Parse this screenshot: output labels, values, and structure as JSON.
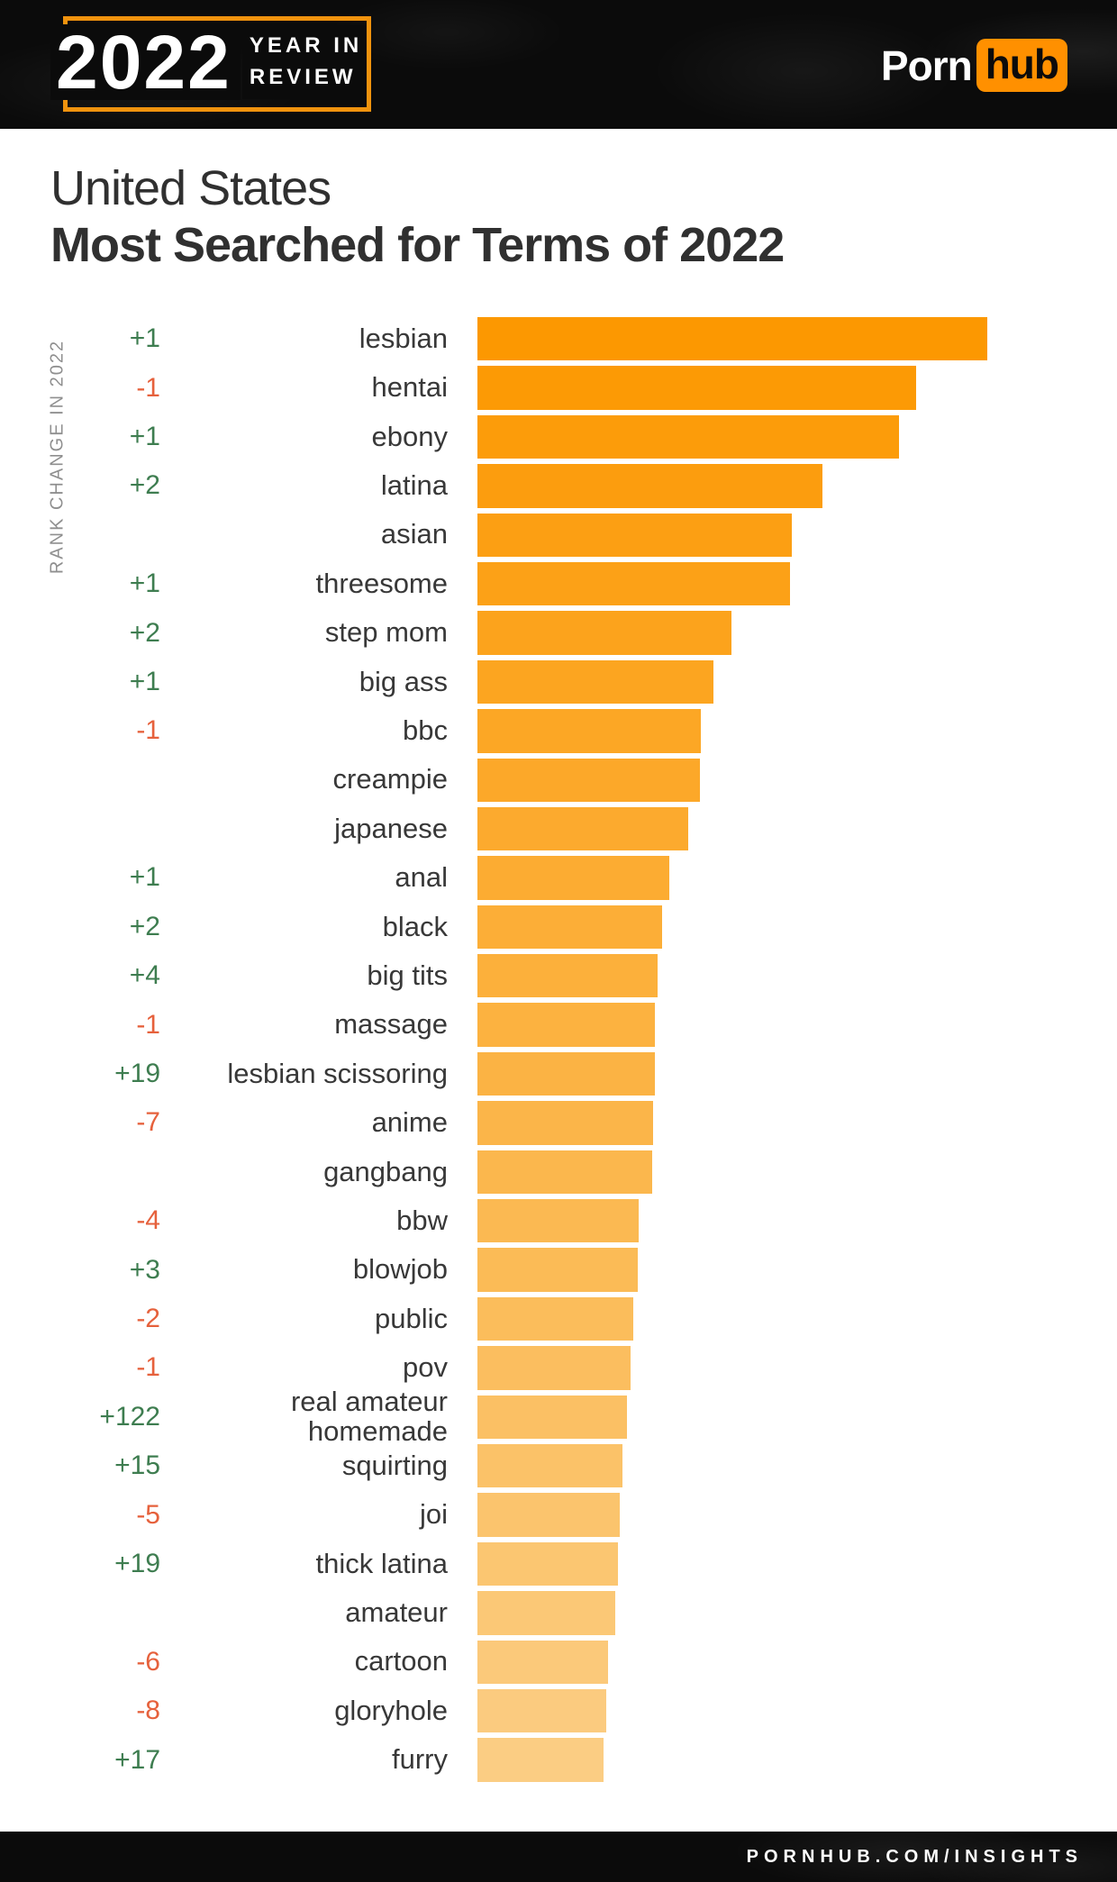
{
  "header": {
    "year_badge": {
      "year": "2022",
      "tagline_line1": "YEAR IN",
      "tagline_line2": "REVIEW"
    },
    "brand": {
      "word_white": "Porn",
      "word_boxed": "hub"
    }
  },
  "page": {
    "region_title": "United States",
    "chart_title": "Most Searched for Terms of 2022"
  },
  "axis": {
    "left_label": "RANK CHANGE IN 2022"
  },
  "footer": {
    "site_label": "PORNHUB.COM/INSIGHTS"
  },
  "colors": {
    "brand_orange": "#FF9000",
    "bracket_orange": "#F0930E",
    "header_bg": "#0B0B0B",
    "bar_top": "#FC9801",
    "bar_bottom": "#FBCD83",
    "rank_up_green": "#3E7D50",
    "rank_down_red": "#E6613C",
    "text_dark": "#303030",
    "axis_label_gray": "#8F8F8F"
  },
  "chart_data": {
    "type": "bar",
    "orientation": "horizontal",
    "title": "United States Most Searched for Terms of 2022",
    "left_axis_label": "RANK CHANGE IN 2022",
    "legend": false,
    "value_note": "relative bar length in design px (1240px-wide canvas); original chart shows no numeric axis",
    "max_value": 566,
    "items": [
      {
        "term": "lesbian",
        "rank_change": "+1",
        "value": 566
      },
      {
        "term": "hentai",
        "rank_change": "-1",
        "value": 487
      },
      {
        "term": "ebony",
        "rank_change": "+1",
        "value": 468
      },
      {
        "term": "latina",
        "rank_change": "+2",
        "value": 383
      },
      {
        "term": "asian",
        "rank_change": "",
        "value": 349
      },
      {
        "term": "threesome",
        "rank_change": "+1",
        "value": 347
      },
      {
        "term": "step mom",
        "rank_change": "+2",
        "value": 282
      },
      {
        "term": "big ass",
        "rank_change": "+1",
        "value": 262
      },
      {
        "term": "bbc",
        "rank_change": "-1",
        "value": 248
      },
      {
        "term": "creampie",
        "rank_change": "",
        "value": 247
      },
      {
        "term": "japanese",
        "rank_change": "",
        "value": 234
      },
      {
        "term": "anal",
        "rank_change": "+1",
        "value": 213
      },
      {
        "term": "black",
        "rank_change": "+2",
        "value": 205
      },
      {
        "term": "big tits",
        "rank_change": "+4",
        "value": 200
      },
      {
        "term": "massage",
        "rank_change": "-1",
        "value": 197
      },
      {
        "term": "lesbian scissoring",
        "rank_change": "+19",
        "value": 197
      },
      {
        "term": "anime",
        "rank_change": "-7",
        "value": 195
      },
      {
        "term": "gangbang",
        "rank_change": "",
        "value": 194
      },
      {
        "term": "bbw",
        "rank_change": "-4",
        "value": 179
      },
      {
        "term": "blowjob",
        "rank_change": "+3",
        "value": 178
      },
      {
        "term": "public",
        "rank_change": "-2",
        "value": 173
      },
      {
        "term": "pov",
        "rank_change": "-1",
        "value": 170
      },
      {
        "term": "real amateur\nhomemade",
        "rank_change": "+122",
        "value": 166
      },
      {
        "term": "squirting",
        "rank_change": "+15",
        "value": 161
      },
      {
        "term": "joi",
        "rank_change": "-5",
        "value": 158
      },
      {
        "term": "thick latina",
        "rank_change": "+19",
        "value": 156
      },
      {
        "term": "amateur",
        "rank_change": "",
        "value": 153
      },
      {
        "term": "cartoon",
        "rank_change": "-6",
        "value": 145
      },
      {
        "term": "gloryhole",
        "rank_change": "-8",
        "value": 143
      },
      {
        "term": "furry",
        "rank_change": "+17",
        "value": 140
      }
    ]
  }
}
